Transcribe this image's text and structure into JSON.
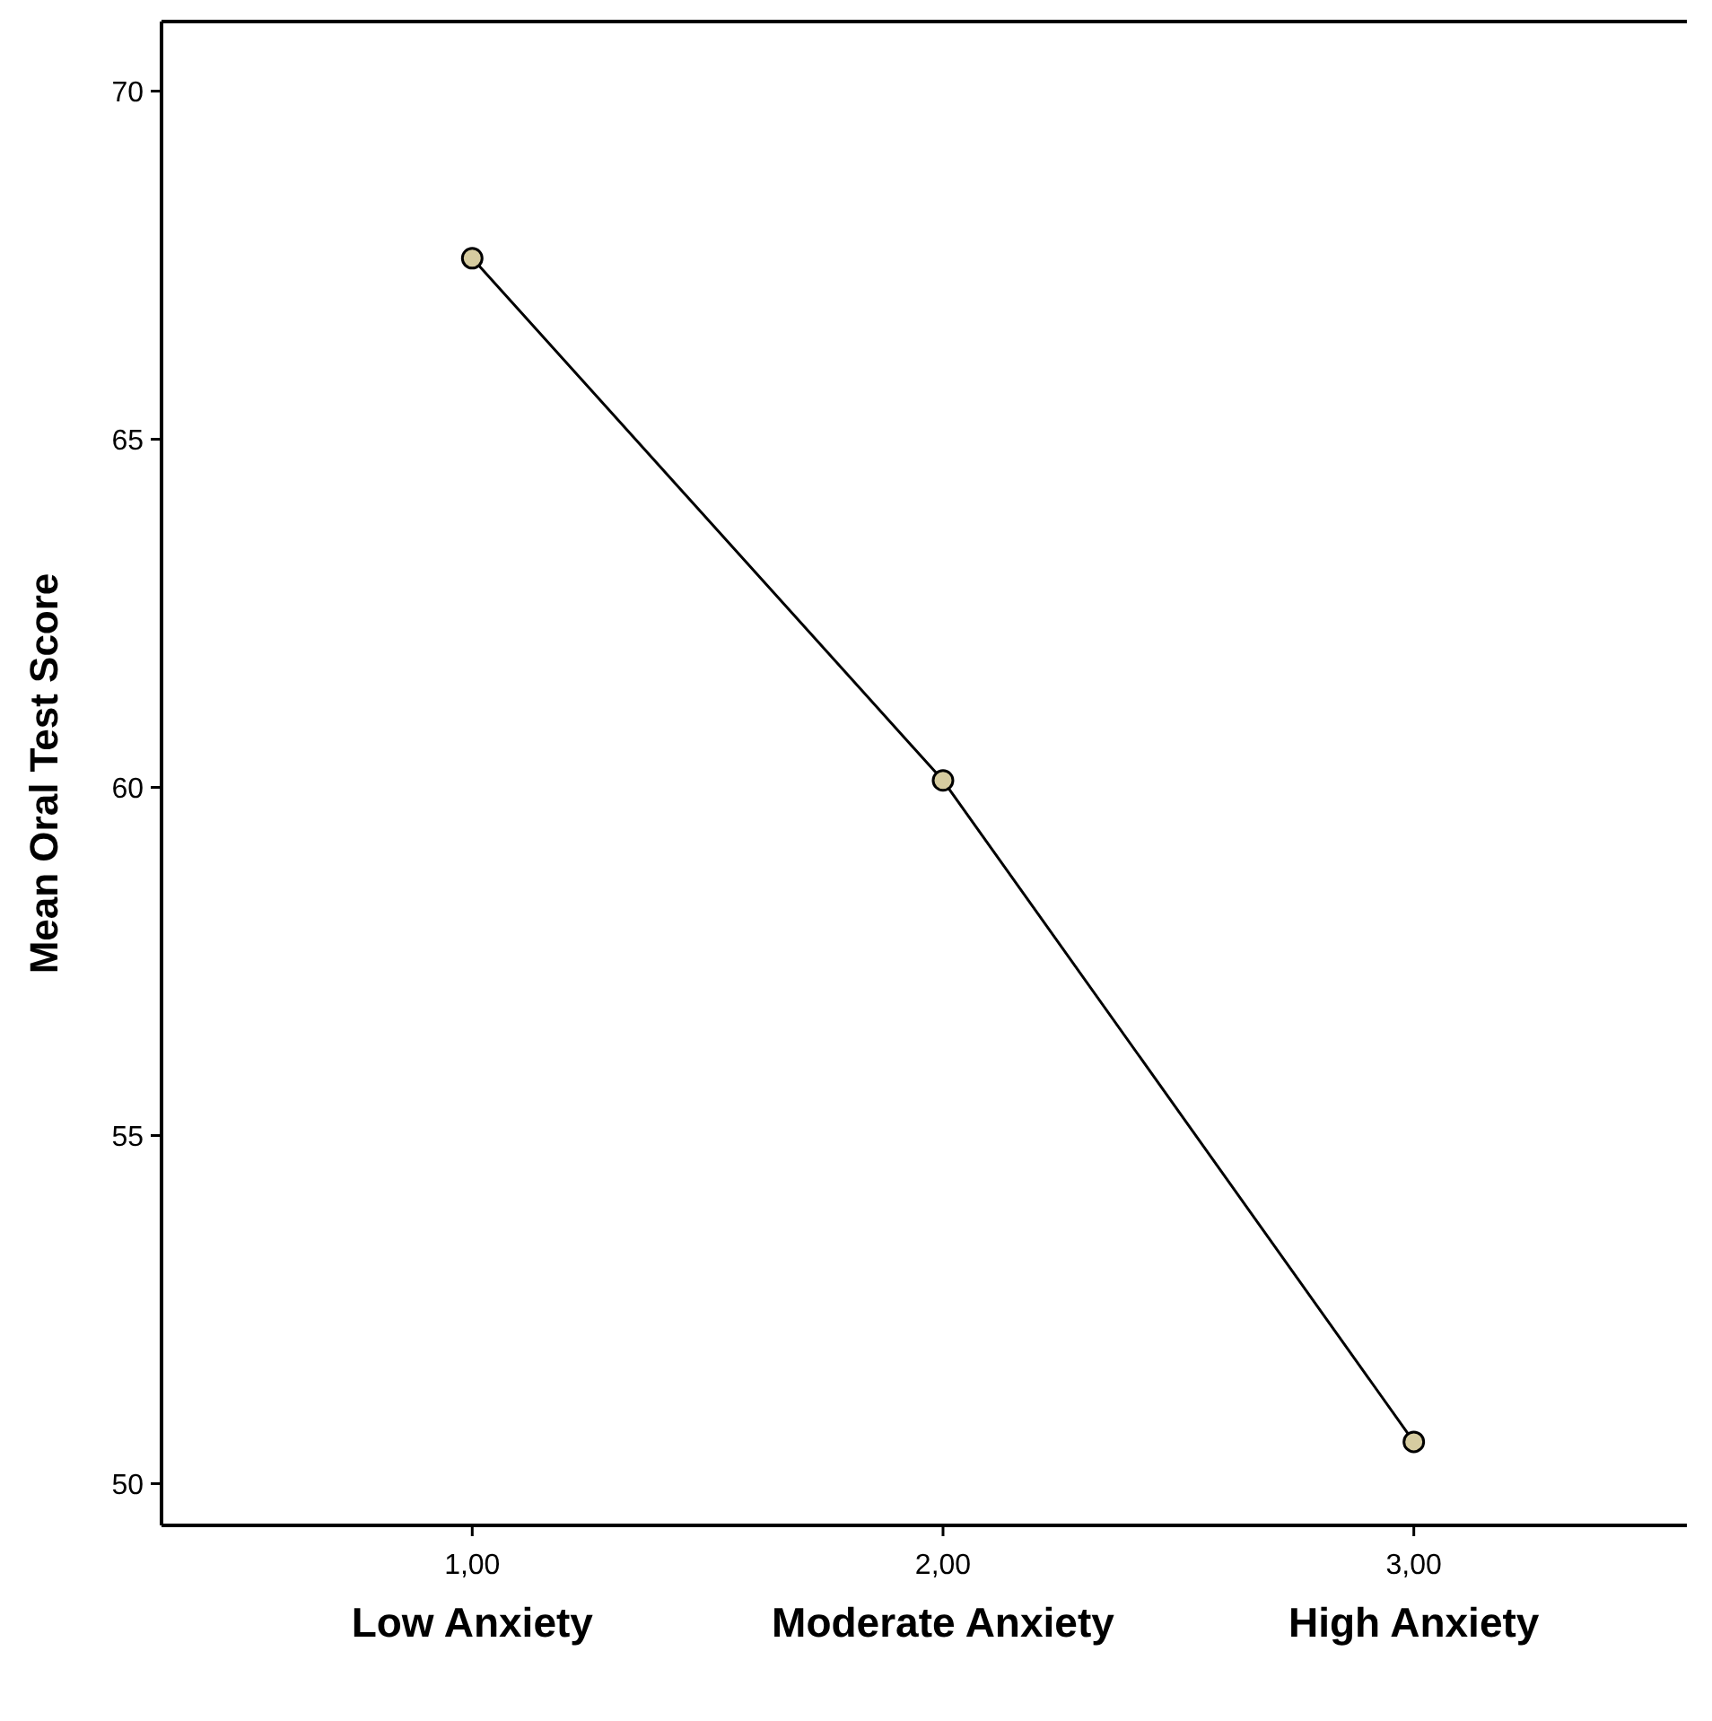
{
  "chart_data": {
    "type": "line",
    "ylabel": "Mean Oral Test Score",
    "categories": [
      "1,00",
      "2,00",
      "3,00"
    ],
    "series": [
      {
        "color": "#000000",
        "values": [
          67.6,
          60.1,
          50.6
        ]
      }
    ],
    "ylim": [
      49.4,
      71
    ],
    "yticks": [
      50,
      55,
      60,
      65,
      70
    ],
    "grid": false,
    "marker": "circle",
    "line_style": "solid",
    "annotations": [
      "Low Anxiety",
      "Moderate Anxiety",
      "High Anxiety"
    ]
  }
}
